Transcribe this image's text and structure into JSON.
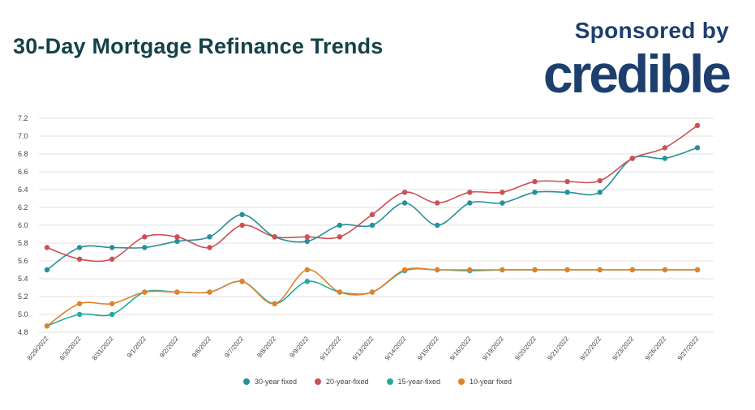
{
  "header": {
    "title": "30-Day Mortgage Refinance Trends",
    "sponsor_label": "Sponsored by",
    "sponsor_logo_text": "credible"
  },
  "colors": {
    "background": "#ffffff",
    "title": "#16414a",
    "sponsor": "#1d3f6e",
    "grid": "#e2e2e2"
  },
  "chart_data": {
    "type": "line",
    "categories": [
      "8/29/2022",
      "8/30/2022",
      "8/31/2022",
      "9/1/2022",
      "9/2/2022",
      "9/6/2022",
      "9/7/2022",
      "9/8/2022",
      "9/9/2022",
      "9/12/2022",
      "9/13/2022",
      "9/14/2022",
      "9/15/2022",
      "9/16/2022",
      "9/19/2022",
      "9/20/2022",
      "9/21/2022",
      "9/22/2022",
      "9/23/2022",
      "9/26/2022",
      "9/27/2022"
    ],
    "ylim": [
      4.8,
      7.2
    ],
    "yticks": [
      "4.8",
      "5.0",
      "5.2",
      "5.4",
      "5.6",
      "5.8",
      "6.0",
      "6.2",
      "6.4",
      "6.6",
      "6.8",
      "7.0",
      "7.2"
    ],
    "grid": true,
    "legend_position": "bottom",
    "series": [
      {
        "name": "30-year fixed",
        "color": "#26909b",
        "values": [
          5.5,
          5.75,
          5.75,
          5.75,
          5.82,
          5.87,
          6.12,
          5.87,
          5.82,
          6.0,
          6.0,
          6.25,
          6.0,
          6.25,
          6.25,
          6.37,
          6.37,
          6.37,
          6.75,
          6.75,
          6.87
        ]
      },
      {
        "name": "20-year-fixed",
        "color": "#cc5055",
        "values": [
          5.75,
          5.62,
          5.62,
          5.87,
          5.87,
          5.75,
          6.0,
          5.87,
          5.87,
          5.87,
          6.12,
          6.37,
          6.25,
          6.37,
          6.37,
          6.49,
          6.49,
          6.5,
          6.75,
          6.87,
          7.12
        ]
      },
      {
        "name": "15-year-fixed",
        "color": "#1fae9c",
        "values": [
          4.87,
          5.0,
          5.0,
          5.25,
          5.25,
          5.25,
          5.37,
          5.12,
          5.37,
          5.25,
          5.25,
          5.49,
          5.5,
          5.49,
          5.5,
          5.5,
          5.5,
          5.5,
          5.5,
          5.5,
          5.5
        ]
      },
      {
        "name": "10-year fixed",
        "color": "#e0822c",
        "values": [
          4.87,
          5.12,
          5.12,
          5.25,
          5.25,
          5.25,
          5.37,
          5.12,
          5.5,
          5.25,
          5.25,
          5.5,
          5.5,
          5.5,
          5.5,
          5.5,
          5.5,
          5.5,
          5.5,
          5.5,
          5.5
        ]
      }
    ]
  }
}
